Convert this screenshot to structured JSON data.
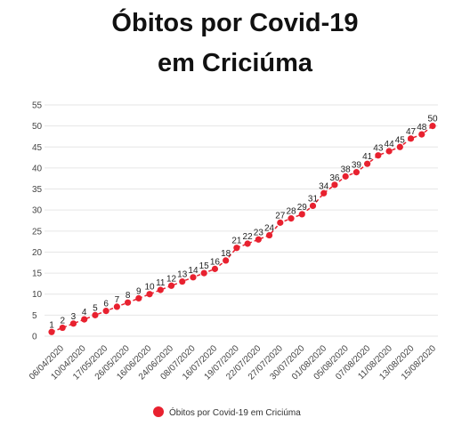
{
  "chart_data": {
    "type": "line",
    "title_line1": "Óbitos por Covid-19",
    "title_line2": "em Criciúma",
    "xlabel": "",
    "ylabel": "",
    "ylim": [
      0,
      55
    ],
    "yticks": [
      0,
      5,
      10,
      15,
      20,
      25,
      30,
      35,
      40,
      45,
      50,
      55
    ],
    "grid": true,
    "legend_position": "bottom",
    "x_tick_labels": [
      "06/04/2020",
      "10/04/2020",
      "17/05/2020",
      "26/05/2020",
      "16/06/2020",
      "24/06/2020",
      "08/07/2020",
      "16/07/2020",
      "19/07/2020",
      "22/07/2020",
      "27/07/2020",
      "30/07/2020",
      "01/08/2020",
      "05/08/2020",
      "07/08/2020",
      "11/08/2020",
      "13/08/2020",
      "15/08/2020"
    ],
    "series": [
      {
        "name": "Óbitos por Covid-19 em Criciúma",
        "color": "#e8212f",
        "values": [
          1,
          2,
          3,
          4,
          5,
          6,
          7,
          8,
          9,
          10,
          11,
          12,
          13,
          14,
          15,
          16,
          18,
          21,
          22,
          23,
          24,
          27,
          28,
          29,
          31,
          34,
          36,
          38,
          39,
          41,
          43,
          44,
          45,
          47,
          48,
          50
        ]
      }
    ]
  }
}
